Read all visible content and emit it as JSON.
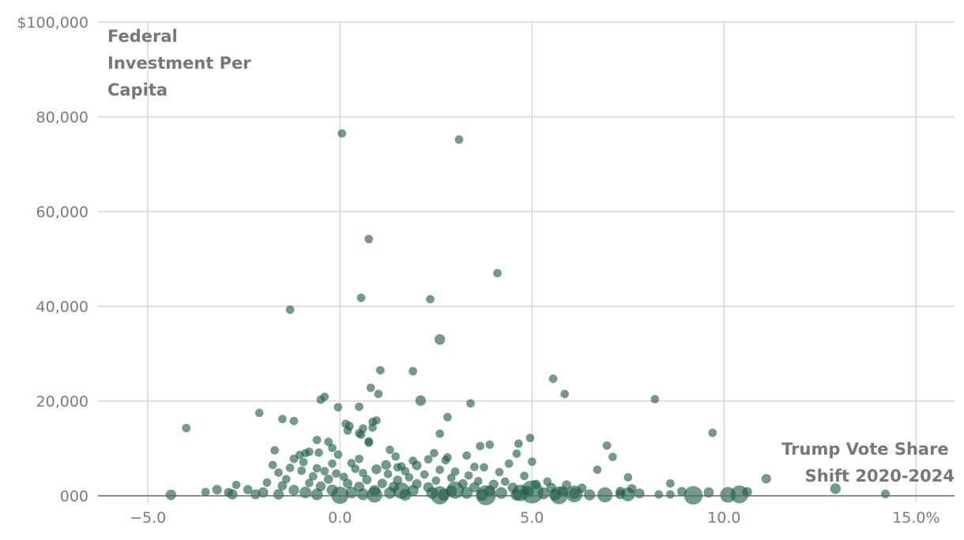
{
  "chart_data": {
    "type": "scatter",
    "title": "",
    "ylabel_lines": [
      "Federal",
      "Investment Per",
      "Capita"
    ],
    "xlabel_lines": [
      "Trump Vote Share",
      "Shift 2020-2024"
    ],
    "xlim": [
      -6.3,
      16.0
    ],
    "ylim": [
      0,
      100000
    ],
    "x_ticks": [
      {
        "value": -5,
        "label": "−5.0"
      },
      {
        "value": 0,
        "label": "0.0"
      },
      {
        "value": 5,
        "label": "5.0"
      },
      {
        "value": 10,
        "label": "10.0"
      },
      {
        "value": 15,
        "label": "15.0%"
      }
    ],
    "y_ticks": [
      {
        "value": 0,
        "label": "000"
      },
      {
        "value": 20000,
        "label": "20,000"
      },
      {
        "value": 40000,
        "label": "40,000"
      },
      {
        "value": 60000,
        "label": "60,000"
      },
      {
        "value": 80000,
        "label": "80,000"
      },
      {
        "value": 100000,
        "label": "$100,000"
      }
    ],
    "grid": true,
    "point_color": "#1b5e48",
    "size_note": "point area encodes county population (relative weight w)",
    "points": [
      {
        "x": 0.05,
        "y": 76500,
        "w": 1
      },
      {
        "x": 3.1,
        "y": 75200,
        "w": 1
      },
      {
        "x": 0.75,
        "y": 54200,
        "w": 1
      },
      {
        "x": 4.1,
        "y": 47000,
        "w": 1
      },
      {
        "x": 0.55,
        "y": 41800,
        "w": 1
      },
      {
        "x": 2.35,
        "y": 41500,
        "w": 1
      },
      {
        "x": -1.3,
        "y": 39300,
        "w": 1
      },
      {
        "x": 2.6,
        "y": 33000,
        "w": 1.6
      },
      {
        "x": 1.05,
        "y": 26500,
        "w": 1
      },
      {
        "x": 1.9,
        "y": 26300,
        "w": 1
      },
      {
        "x": 5.55,
        "y": 24700,
        "w": 1
      },
      {
        "x": 0.8,
        "y": 22800,
        "w": 1
      },
      {
        "x": 1.0,
        "y": 21500,
        "w": 1
      },
      {
        "x": 5.85,
        "y": 21500,
        "w": 1
      },
      {
        "x": -0.4,
        "y": 20900,
        "w": 1
      },
      {
        "x": -0.5,
        "y": 20300,
        "w": 1
      },
      {
        "x": 8.2,
        "y": 20400,
        "w": 1
      },
      {
        "x": 2.1,
        "y": 20100,
        "w": 1.6
      },
      {
        "x": 3.4,
        "y": 19500,
        "w": 1
      },
      {
        "x": -0.05,
        "y": 18700,
        "w": 1
      },
      {
        "x": 0.5,
        "y": 18800,
        "w": 1
      },
      {
        "x": -2.1,
        "y": 17500,
        "w": 1
      },
      {
        "x": -1.5,
        "y": 16200,
        "w": 1
      },
      {
        "x": 2.8,
        "y": 16600,
        "w": 1
      },
      {
        "x": -1.2,
        "y": 15800,
        "w": 1
      },
      {
        "x": 0.95,
        "y": 15900,
        "w": 1
      },
      {
        "x": 0.85,
        "y": 15600,
        "w": 1
      },
      {
        "x": 0.15,
        "y": 15200,
        "w": 1
      },
      {
        "x": 0.25,
        "y": 14700,
        "w": 1
      },
      {
        "x": 0.85,
        "y": 14400,
        "w": 1
      },
      {
        "x": 0.6,
        "y": 14200,
        "w": 1
      },
      {
        "x": -4.0,
        "y": 14300,
        "w": 1
      },
      {
        "x": 0.2,
        "y": 13800,
        "w": 1
      },
      {
        "x": 0.5,
        "y": 13200,
        "w": 1
      },
      {
        "x": 0.55,
        "y": 12900,
        "w": 1
      },
      {
        "x": 2.6,
        "y": 13100,
        "w": 1
      },
      {
        "x": 9.7,
        "y": 13300,
        "w": 1
      },
      {
        "x": 4.95,
        "y": 12200,
        "w": 1
      },
      {
        "x": -0.6,
        "y": 11800,
        "w": 1
      },
      {
        "x": -0.3,
        "y": 11400,
        "w": 1
      },
      {
        "x": 0.75,
        "y": 11500,
        "w": 1
      },
      {
        "x": 0.75,
        "y": 11200,
        "w": 1
      },
      {
        "x": 4.65,
        "y": 11000,
        "w": 1
      },
      {
        "x": 3.9,
        "y": 10800,
        "w": 1
      },
      {
        "x": 3.65,
        "y": 10500,
        "w": 1
      },
      {
        "x": 6.95,
        "y": 10600,
        "w": 1
      },
      {
        "x": -0.2,
        "y": 10100,
        "w": 1
      },
      {
        "x": 1.3,
        "y": 9700,
        "w": 1
      },
      {
        "x": -1.7,
        "y": 9600,
        "w": 1
      },
      {
        "x": -0.8,
        "y": 9300,
        "w": 1
      },
      {
        "x": -0.9,
        "y": 9000,
        "w": 1
      },
      {
        "x": -0.55,
        "y": 9100,
        "w": 1
      },
      {
        "x": -0.05,
        "y": 8700,
        "w": 1
      },
      {
        "x": 2.45,
        "y": 9000,
        "w": 1
      },
      {
        "x": 4.6,
        "y": 8900,
        "w": 1
      },
      {
        "x": -1.05,
        "y": 8600,
        "w": 1
      },
      {
        "x": 1.45,
        "y": 8300,
        "w": 1
      },
      {
        "x": 3.3,
        "y": 8500,
        "w": 1
      },
      {
        "x": 2.8,
        "y": 8100,
        "w": 1
      },
      {
        "x": 7.1,
        "y": 8200,
        "w": 1
      },
      {
        "x": -1.2,
        "y": 7800,
        "w": 1
      },
      {
        "x": 0.5,
        "y": 7800,
        "w": 1
      },
      {
        "x": 2.3,
        "y": 7700,
        "w": 1
      },
      {
        "x": 2.75,
        "y": 7500,
        "w": 1
      },
      {
        "x": 1.9,
        "y": 7400,
        "w": 1
      },
      {
        "x": 5.0,
        "y": 7200,
        "w": 1
      },
      {
        "x": -0.95,
        "y": 7100,
        "w": 1
      },
      {
        "x": -0.2,
        "y": 6800,
        "w": 1
      },
      {
        "x": 0.3,
        "y": 6900,
        "w": 1
      },
      {
        "x": 4.4,
        "y": 6800,
        "w": 1
      },
      {
        "x": -1.75,
        "y": 6500,
        "w": 1
      },
      {
        "x": 1.2,
        "y": 6500,
        "w": 1.4
      },
      {
        "x": 2.0,
        "y": 6400,
        "w": 1.3
      },
      {
        "x": 1.6,
        "y": 6200,
        "w": 1
      },
      {
        "x": 1.5,
        "y": 6000,
        "w": 1
      },
      {
        "x": 3.5,
        "y": 6100,
        "w": 1
      },
      {
        "x": 3.75,
        "y": 6000,
        "w": 1
      },
      {
        "x": -1.3,
        "y": 5900,
        "w": 1
      },
      {
        "x": -0.6,
        "y": 5800,
        "w": 1
      },
      {
        "x": 0.4,
        "y": 5700,
        "w": 1
      },
      {
        "x": 0.95,
        "y": 5600,
        "w": 1.4
      },
      {
        "x": 2.6,
        "y": 5500,
        "w": 1
      },
      {
        "x": 6.7,
        "y": 5500,
        "w": 1
      },
      {
        "x": -1.0,
        "y": 5300,
        "w": 1
      },
      {
        "x": -0.4,
        "y": 5200,
        "w": 1
      },
      {
        "x": 1.7,
        "y": 5200,
        "w": 1
      },
      {
        "x": 3.0,
        "y": 5100,
        "w": 1
      },
      {
        "x": 4.15,
        "y": 5000,
        "w": 1
      },
      {
        "x": -1.6,
        "y": 4900,
        "w": 1
      },
      {
        "x": -0.1,
        "y": 4700,
        "w": 1
      },
      {
        "x": 0.6,
        "y": 4800,
        "w": 1
      },
      {
        "x": 1.25,
        "y": 4600,
        "w": 1
      },
      {
        "x": 2.2,
        "y": 4500,
        "w": 1
      },
      {
        "x": 3.35,
        "y": 4300,
        "w": 1
      },
      {
        "x": 4.8,
        "y": 4200,
        "w": 1
      },
      {
        "x": -0.7,
        "y": 4100,
        "w": 1
      },
      {
        "x": 0.1,
        "y": 4000,
        "w": 1
      },
      {
        "x": 1.8,
        "y": 3900,
        "w": 1
      },
      {
        "x": 2.9,
        "y": 3800,
        "w": 1
      },
      {
        "x": 7.5,
        "y": 3900,
        "w": 1
      },
      {
        "x": 11.1,
        "y": 3600,
        "w": 1.3
      },
      {
        "x": -1.4,
        "y": 3500,
        "w": 1
      },
      {
        "x": -0.3,
        "y": 3500,
        "w": 1.2
      },
      {
        "x": 0.7,
        "y": 3400,
        "w": 1.2
      },
      {
        "x": 1.5,
        "y": 3300,
        "w": 1.2
      },
      {
        "x": 2.5,
        "y": 3200,
        "w": 1
      },
      {
        "x": 3.6,
        "y": 3100,
        "w": 1
      },
      {
        "x": 4.3,
        "y": 3000,
        "w": 1
      },
      {
        "x": 5.4,
        "y": 3000,
        "w": 1
      },
      {
        "x": -1.9,
        "y": 2800,
        "w": 1
      },
      {
        "x": -0.8,
        "y": 2700,
        "w": 1
      },
      {
        "x": 0.2,
        "y": 2600,
        "w": 1.3
      },
      {
        "x": 1.1,
        "y": 2600,
        "w": 1.3
      },
      {
        "x": 2.0,
        "y": 2500,
        "w": 1.3
      },
      {
        "x": 3.2,
        "y": 2500,
        "w": 1.3
      },
      {
        "x": 4.0,
        "y": 2400,
        "w": 1.3
      },
      {
        "x": 5.1,
        "y": 2400,
        "w": 1.3
      },
      {
        "x": 5.9,
        "y": 2300,
        "w": 1.2
      },
      {
        "x": 8.6,
        "y": 2600,
        "w": 1
      },
      {
        "x": -2.7,
        "y": 2300,
        "w": 1
      },
      {
        "x": -1.5,
        "y": 2100,
        "w": 1.2
      },
      {
        "x": -0.5,
        "y": 2000,
        "w": 1.4
      },
      {
        "x": 0.5,
        "y": 1900,
        "w": 1.5
      },
      {
        "x": 1.4,
        "y": 1900,
        "w": 1.5
      },
      {
        "x": 2.3,
        "y": 1800,
        "w": 1.5
      },
      {
        "x": 3.5,
        "y": 1800,
        "w": 1.5
      },
      {
        "x": 4.5,
        "y": 1700,
        "w": 1.5
      },
      {
        "x": 5.5,
        "y": 1700,
        "w": 1.4
      },
      {
        "x": 6.3,
        "y": 1600,
        "w": 1.2
      },
      {
        "x": 7.6,
        "y": 1500,
        "w": 1.2
      },
      {
        "x": 12.9,
        "y": 1500,
        "w": 1.6
      },
      {
        "x": -3.2,
        "y": 1300,
        "w": 1.3
      },
      {
        "x": -2.4,
        "y": 1300,
        "w": 1.2
      },
      {
        "x": -1.2,
        "y": 1200,
        "w": 1.6
      },
      {
        "x": -0.2,
        "y": 1200,
        "w": 1.8
      },
      {
        "x": 0.9,
        "y": 1100,
        "w": 1.8
      },
      {
        "x": 1.9,
        "y": 1100,
        "w": 1.8
      },
      {
        "x": 2.9,
        "y": 1000,
        "w": 1.8
      },
      {
        "x": 3.9,
        "y": 1000,
        "w": 1.8
      },
      {
        "x": 4.9,
        "y": 900,
        "w": 1.8
      },
      {
        "x": 5.8,
        "y": 900,
        "w": 1.6
      },
      {
        "x": 7.3,
        "y": 900,
        "w": 1.3
      },
      {
        "x": 8.9,
        "y": 900,
        "w": 1.2
      },
      {
        "x": -3.5,
        "y": 800,
        "w": 1
      },
      {
        "x": -2.9,
        "y": 700,
        "w": 1.2
      },
      {
        "x": -2.0,
        "y": 700,
        "w": 1.5
      },
      {
        "x": -0.9,
        "y": 700,
        "w": 2
      },
      {
        "x": 0.3,
        "y": 700,
        "w": 2
      },
      {
        "x": 1.3,
        "y": 600,
        "w": 2
      },
      {
        "x": 2.4,
        "y": 600,
        "w": 2
      },
      {
        "x": 3.3,
        "y": 600,
        "w": 2
      },
      {
        "x": 4.2,
        "y": 600,
        "w": 2
      },
      {
        "x": 5.3,
        "y": 500,
        "w": 2
      },
      {
        "x": 6.1,
        "y": 500,
        "w": 1.8
      },
      {
        "x": 7.8,
        "y": 500,
        "w": 1.4
      },
      {
        "x": 9.6,
        "y": 700,
        "w": 1.5
      },
      {
        "x": 10.6,
        "y": 800,
        "w": 1.4
      },
      {
        "x": -4.4,
        "y": 200,
        "w": 1.6
      },
      {
        "x": -2.8,
        "y": 300,
        "w": 1.5
      },
      {
        "x": -2.2,
        "y": 300,
        "w": 1.4
      },
      {
        "x": -1.6,
        "y": 300,
        "w": 1.6
      },
      {
        "x": -0.6,
        "y": 300,
        "w": 2
      },
      {
        "x": 0.6,
        "y": 300,
        "w": 2
      },
      {
        "x": 1.7,
        "y": 200,
        "w": 2
      },
      {
        "x": 2.7,
        "y": 200,
        "w": 2
      },
      {
        "x": 3.7,
        "y": 200,
        "w": 2
      },
      {
        "x": 4.6,
        "y": 200,
        "w": 2
      },
      {
        "x": 5.6,
        "y": 200,
        "w": 2
      },
      {
        "x": 6.5,
        "y": 200,
        "w": 1.8
      },
      {
        "x": 7.3,
        "y": 300,
        "w": 1.4
      },
      {
        "x": 8.3,
        "y": 300,
        "w": 1
      },
      {
        "x": 8.6,
        "y": 300,
        "w": 1
      },
      {
        "x": 14.2,
        "y": 400,
        "w": 1.1
      },
      {
        "x": 0.0,
        "y": 100,
        "w": 4.5
      },
      {
        "x": 0.9,
        "y": 200,
        "w": 3.6
      },
      {
        "x": 1.6,
        "y": 1100,
        "w": 4
      },
      {
        "x": 2.6,
        "y": 100,
        "w": 5
      },
      {
        "x": 3.0,
        "y": 1200,
        "w": 4.5
      },
      {
        "x": 3.8,
        "y": 100,
        "w": 6
      },
      {
        "x": 4.7,
        "y": 600,
        "w": 4
      },
      {
        "x": 5.0,
        "y": 800,
        "w": 8
      },
      {
        "x": 5.7,
        "y": 100,
        "w": 4.8
      },
      {
        "x": 6.1,
        "y": 400,
        "w": 4.2
      },
      {
        "x": 6.9,
        "y": 200,
        "w": 3.4
      },
      {
        "x": 7.5,
        "y": 300,
        "w": 2.8
      },
      {
        "x": 9.2,
        "y": 100,
        "w": 5.2
      },
      {
        "x": 10.1,
        "y": 200,
        "w": 3.6
      },
      {
        "x": 10.4,
        "y": 300,
        "w": 4.8
      }
    ]
  }
}
